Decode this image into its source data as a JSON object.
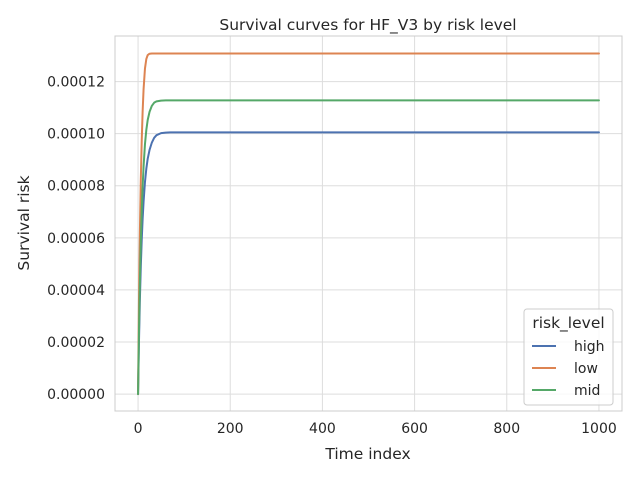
{
  "chart_data": {
    "type": "line",
    "title": "Survival curves for HF_V3 by risk level",
    "xlabel": "Time index",
    "ylabel": "Survival risk",
    "xlim": [
      -50,
      1050
    ],
    "ylim": [
      -6.5e-06,
      0.0001375
    ],
    "x_ticks": [
      0,
      200,
      400,
      600,
      800,
      1000
    ],
    "x_tick_labels": [
      "0",
      "200",
      "400",
      "600",
      "800",
      "1000"
    ],
    "y_ticks": [
      0,
      2e-05,
      4e-05,
      6e-05,
      8e-05,
      0.0001,
      0.00012
    ],
    "y_tick_labels": [
      "0.00000",
      "0.00002",
      "0.00004",
      "0.00006",
      "0.00008",
      "0.00010",
      "0.00012"
    ],
    "grid": true,
    "legend": {
      "title": "risk_level",
      "placement": "lower-right"
    },
    "x": [
      0,
      2,
      4,
      6,
      8,
      10,
      12,
      15,
      18,
      21,
      25,
      30,
      35,
      40,
      50,
      60,
      70,
      80,
      100,
      150,
      200,
      300,
      400,
      500,
      600,
      700,
      800,
      900,
      1000
    ],
    "series": [
      {
        "name": "high",
        "color": "#4c72b0",
        "values": [
          0,
          2.02e-05,
          3.63e-05,
          4.91e-05,
          5.93e-05,
          6.74e-05,
          7.39e-05,
          8.14e-05,
          8.66e-05,
          9.04e-05,
          9.38e-05,
          9.66e-05,
          9.84e-05,
          9.94e-05,
          0.0001002,
          0.0001004,
          0.0001005,
          0.0001005,
          0.0001005,
          0.0001005,
          0.0001005,
          0.0001005,
          0.0001005,
          0.0001005,
          0.0001005,
          0.0001005,
          0.0001005,
          0.0001005,
          0.0001005
        ]
      },
      {
        "name": "low",
        "color": "#dd8452",
        "values": [
          0,
          3.57e-05,
          6.24e-05,
          8.24e-05,
          9.74e-05,
          0.0001087,
          0.0001171,
          0.000125,
          0.0001287,
          0.0001302,
          0.0001307,
          0.0001308,
          0.0001308,
          0.0001308,
          0.0001308,
          0.0001308,
          0.0001308,
          0.0001308,
          0.0001308,
          0.0001308,
          0.0001308,
          0.0001308,
          0.0001308,
          0.0001308,
          0.0001308,
          0.0001308,
          0.0001308,
          0.0001308,
          0.0001308
        ]
      },
      {
        "name": "mid",
        "color": "#55a868",
        "values": [
          0,
          2.41e-05,
          4.32e-05,
          5.84e-05,
          7.04e-05,
          7.99e-05,
          8.74e-05,
          9.59e-05,
          0.0001015,
          0.0001053,
          0.0001084,
          0.0001107,
          0.0001119,
          0.0001124,
          0.0001127,
          0.0001128,
          0.0001128,
          0.0001128,
          0.0001128,
          0.0001128,
          0.0001128,
          0.0001128,
          0.0001128,
          0.0001128,
          0.0001128,
          0.0001128,
          0.0001128,
          0.0001128,
          0.0001128
        ]
      }
    ]
  }
}
